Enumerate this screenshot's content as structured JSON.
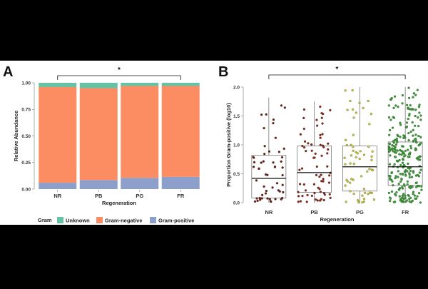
{
  "figure": {
    "panel_a_letter": "A",
    "panel_b_letter": "B",
    "colors": {
      "background": "#000000",
      "panel": "#ffffff",
      "unknown": "#66c2a5",
      "gram_negative": "#fc8d62",
      "gram_positive": "#8da0cb",
      "box_fill": "#ffffff",
      "box_stroke": "#666666",
      "point_NR": "#6b1d12",
      "point_PB": "#8a2a17",
      "point_PG": "#c8c83a",
      "point_FR": "#3aa035"
    }
  },
  "chart_data": [
    {
      "id": "A",
      "type": "bar",
      "stacked": true,
      "title": "",
      "xlabel": "Regeneration",
      "ylabel": "Relative Abundance",
      "categories": [
        "NR",
        "PB",
        "PG",
        "FR"
      ],
      "ylim": [
        0,
        1
      ],
      "yticks": [
        0.0,
        0.25,
        0.5,
        0.75,
        1.0
      ],
      "ytick_labels": [
        "0.00",
        "0.25",
        "0.50",
        "0.75",
        "1.00"
      ],
      "series": [
        {
          "name": "Gram-positive",
          "color_key": "gram_positive",
          "values": [
            0.06,
            0.085,
            0.105,
            0.115
          ]
        },
        {
          "name": "Gram-negative",
          "color_key": "gram_negative",
          "values": [
            0.9,
            0.865,
            0.865,
            0.855
          ]
        },
        {
          "name": "Unknown",
          "color_key": "unknown",
          "values": [
            0.04,
            0.05,
            0.03,
            0.03
          ]
        }
      ],
      "legend": {
        "title": "Gram",
        "entries": [
          "Unknown",
          "Gram-negative",
          "Gram-positive"
        ],
        "placement": "bottom"
      },
      "annotation": {
        "text": "*",
        "from": "NR",
        "to": "FR"
      }
    },
    {
      "id": "B",
      "type": "box",
      "title": "",
      "xlabel": "Regeneration",
      "ylabel": "Proportion Gram-positive (log10)",
      "categories": [
        "NR",
        "PB",
        "PG",
        "FR"
      ],
      "ylim": [
        0,
        2
      ],
      "yticks": [
        0.0,
        0.5,
        1.0,
        1.5,
        2.0
      ],
      "ytick_labels": [
        "0.0",
        "0.5",
        "1.0",
        "1.5",
        "2.0"
      ],
      "boxes": [
        {
          "category": "NR",
          "q1": 0.08,
          "median": 0.42,
          "q3": 0.82,
          "whisker_low": 0.0,
          "whisker_high": 1.82,
          "n_points": 55
        },
        {
          "category": "PB",
          "q1": 0.18,
          "median": 0.52,
          "q3": 0.98,
          "whisker_low": 0.0,
          "whisker_high": 1.75,
          "n_points": 70
        },
        {
          "category": "PG",
          "q1": 0.2,
          "median": 0.62,
          "q3": 0.98,
          "whisker_low": 0.0,
          "whisker_high": 2.0,
          "n_points": 60
        },
        {
          "category": "FR",
          "q1": 0.3,
          "median": 0.62,
          "q3": 1.05,
          "whisker_low": 0.0,
          "whisker_high": 2.0,
          "n_points": 260
        }
      ],
      "annotation": {
        "text": "*",
        "from": "NR",
        "to": "FR"
      }
    }
  ]
}
